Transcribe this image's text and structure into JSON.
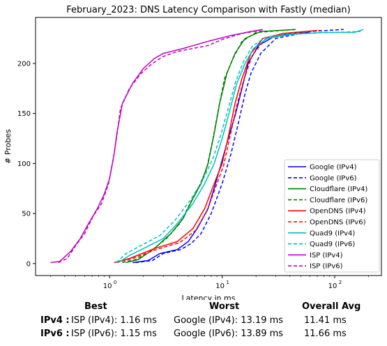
{
  "chart_data": {
    "type": "line",
    "title": "February_2023: DNS Latency Comparison with Fastly (median)",
    "xlabel": "Latency in ms",
    "ylabel": "# Probes",
    "xscale": "log",
    "xlim": [
      0.22,
      260
    ],
    "ylim": [
      -12,
      246
    ],
    "x_ticks": [
      1,
      10,
      100
    ],
    "x_tick_labels": [
      "10^0",
      "10^1",
      "10^2"
    ],
    "y_ticks": [
      0,
      50,
      100,
      150,
      200
    ],
    "y_tick_labels": [
      "0",
      "50",
      "100",
      "150",
      "200"
    ],
    "grid": false,
    "legend_position": "lower-right",
    "series": [
      {
        "name": "Google (IPv4)",
        "color": "#0000ff",
        "style": "solid",
        "points": [
          [
            1.6,
            1
          ],
          [
            2.2,
            3
          ],
          [
            2.8,
            10
          ],
          [
            4,
            14
          ],
          [
            5,
            22
          ],
          [
            6,
            35
          ],
          [
            7.5,
            55
          ],
          [
            9,
            85
          ],
          [
            11,
            120
          ],
          [
            13.2,
            150
          ],
          [
            15,
            175
          ],
          [
            17,
            200
          ],
          [
            21,
            218
          ],
          [
            28,
            226
          ],
          [
            40,
            230
          ],
          [
            60,
            231
          ]
        ]
      },
      {
        "name": "Google (IPv6)",
        "color": "#0000ff",
        "style": "dashed",
        "points": [
          [
            1.7,
            1
          ],
          [
            2.4,
            3
          ],
          [
            3,
            10
          ],
          [
            4.3,
            14
          ],
          [
            5.3,
            20
          ],
          [
            6.5,
            30
          ],
          [
            8,
            50
          ],
          [
            10,
            80
          ],
          [
            12,
            110
          ],
          [
            13.9,
            140
          ],
          [
            16,
            170
          ],
          [
            18,
            190
          ],
          [
            22,
            210
          ],
          [
            30,
            225
          ],
          [
            60,
            232
          ],
          [
            120,
            234
          ]
        ]
      },
      {
        "name": "Cloudflare (IPv4)",
        "color": "#008000",
        "style": "solid",
        "points": [
          [
            1.4,
            1
          ],
          [
            1.8,
            4
          ],
          [
            2.5,
            15
          ],
          [
            3.5,
            30
          ],
          [
            4.5,
            45
          ],
          [
            5.5,
            65
          ],
          [
            6.5,
            80
          ],
          [
            7.5,
            100
          ],
          [
            8.5,
            130
          ],
          [
            9.5,
            160
          ],
          [
            11,
            190
          ],
          [
            13,
            210
          ],
          [
            16,
            225
          ],
          [
            22,
            232
          ],
          [
            45,
            234
          ]
        ]
      },
      {
        "name": "Cloudflare (IPv6)",
        "color": "#008000",
        "style": "dashed",
        "points": [
          [
            1.3,
            1
          ],
          [
            1.7,
            4
          ],
          [
            2.3,
            12
          ],
          [
            3.2,
            25
          ],
          [
            4.2,
            40
          ],
          [
            5.2,
            60
          ],
          [
            6.3,
            78
          ],
          [
            7.3,
            95
          ],
          [
            8.3,
            125
          ],
          [
            9.3,
            155
          ],
          [
            10.5,
            185
          ],
          [
            12.5,
            205
          ],
          [
            15,
            222
          ],
          [
            20,
            231
          ],
          [
            45,
            234
          ]
        ]
      },
      {
        "name": "OpenDNS (IPv4)",
        "color": "#ff0000",
        "style": "solid",
        "points": [
          [
            1.1,
            1
          ],
          [
            1.5,
            5
          ],
          [
            2.5,
            15
          ],
          [
            4,
            22
          ],
          [
            5.5,
            35
          ],
          [
            7,
            55
          ],
          [
            8.5,
            80
          ],
          [
            10,
            100
          ],
          [
            11.5,
            130
          ],
          [
            13,
            160
          ],
          [
            15,
            185
          ],
          [
            18,
            210
          ],
          [
            23,
            225
          ],
          [
            35,
            230
          ],
          [
            70,
            233
          ]
        ]
      },
      {
        "name": "OpenDNS (IPv6)",
        "color": "#ff0000",
        "style": "dashed",
        "points": [
          [
            1.15,
            1
          ],
          [
            1.6,
            5
          ],
          [
            2.6,
            14
          ],
          [
            4.2,
            21
          ],
          [
            5.8,
            33
          ],
          [
            7.3,
            52
          ],
          [
            8.8,
            77
          ],
          [
            10.3,
            98
          ],
          [
            11.8,
            128
          ],
          [
            13.5,
            158
          ],
          [
            15.5,
            183
          ],
          [
            18.5,
            208
          ],
          [
            24,
            224
          ],
          [
            38,
            230
          ],
          [
            75,
            233
          ]
        ]
      },
      {
        "name": "Quad9 (IPv4)",
        "color": "#00bfbf",
        "style": "solid",
        "points": [
          [
            1.2,
            1
          ],
          [
            1.5,
            8
          ],
          [
            2,
            15
          ],
          [
            3,
            25
          ],
          [
            4,
            40
          ],
          [
            5.5,
            60
          ],
          [
            7,
            80
          ],
          [
            8.5,
            100
          ],
          [
            10,
            125
          ],
          [
            11.5,
            150
          ],
          [
            13.5,
            180
          ],
          [
            16,
            200
          ],
          [
            19,
            215
          ],
          [
            25,
            225
          ],
          [
            40,
            229
          ],
          [
            80,
            231
          ],
          [
            150,
            231
          ],
          [
            180,
            234
          ]
        ]
      },
      {
        "name": "Quad9 (IPv6)",
        "color": "#00bfbf",
        "style": "dashed",
        "points": [
          [
            1.15,
            1
          ],
          [
            1.4,
            10
          ],
          [
            1.9,
            18
          ],
          [
            2.8,
            28
          ],
          [
            3.8,
            43
          ],
          [
            5.2,
            63
          ],
          [
            6.7,
            83
          ],
          [
            8.2,
            104
          ],
          [
            9.7,
            128
          ],
          [
            11.2,
            153
          ],
          [
            13.2,
            182
          ],
          [
            15.5,
            202
          ],
          [
            18.5,
            217
          ],
          [
            24,
            226
          ],
          [
            40,
            230
          ],
          [
            100,
            231
          ],
          [
            170,
            232
          ]
        ]
      },
      {
        "name": "ISP (IPv4)",
        "color": "#bf00bf",
        "style": "solid",
        "points": [
          [
            0.3,
            1
          ],
          [
            0.36,
            2
          ],
          [
            0.45,
            12
          ],
          [
            0.55,
            25
          ],
          [
            0.65,
            40
          ],
          [
            0.78,
            55
          ],
          [
            0.9,
            70
          ],
          [
            1.0,
            85
          ],
          [
            1.1,
            110
          ],
          [
            1.16,
            130
          ],
          [
            1.3,
            160
          ],
          [
            1.6,
            180
          ],
          [
            2,
            195
          ],
          [
            2.5,
            205
          ],
          [
            3,
            210
          ],
          [
            4.5,
            215
          ],
          [
            6,
            219
          ],
          [
            8,
            223
          ],
          [
            12,
            228
          ],
          [
            18,
            232
          ],
          [
            23,
            234
          ]
        ]
      },
      {
        "name": "ISP (IPv6)",
        "color": "#bf00bf",
        "style": "dashed",
        "points": [
          [
            0.35,
            1
          ],
          [
            0.42,
            5
          ],
          [
            0.5,
            18
          ],
          [
            0.6,
            30
          ],
          [
            0.72,
            48
          ],
          [
            0.85,
            60
          ],
          [
            0.98,
            80
          ],
          [
            1.08,
            105
          ],
          [
            1.15,
            125
          ],
          [
            1.25,
            155
          ],
          [
            1.5,
            175
          ],
          [
            1.9,
            190
          ],
          [
            2.4,
            200
          ],
          [
            3,
            207
          ],
          [
            4,
            212
          ],
          [
            5.5,
            215
          ],
          [
            7.5,
            218
          ],
          [
            10,
            224
          ],
          [
            15,
            230
          ],
          [
            22,
            233
          ]
        ]
      }
    ]
  },
  "summary": {
    "headers": [
      "Best",
      "Worst",
      "Overall Avg"
    ],
    "rows": [
      {
        "label": "IPv4 :",
        "best": "ISP (IPv4): 1.16 ms",
        "worst": "Google (IPv4): 13.19 ms",
        "avg": "11.41 ms"
      },
      {
        "label": "IPv6 :",
        "best": "ISP (IPv6): 1.15 ms",
        "worst": "Google (IPv6): 13.89 ms",
        "avg": "11.66 ms"
      }
    ]
  }
}
